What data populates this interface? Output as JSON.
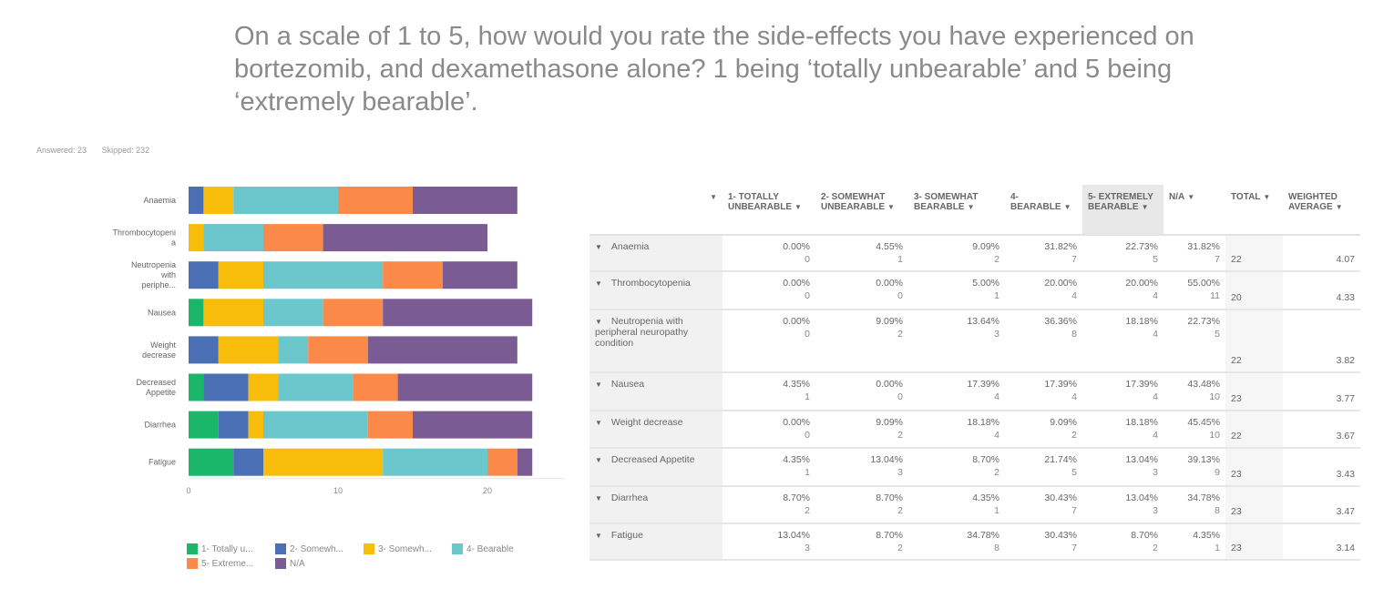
{
  "title": "On a scale of 1 to 5, how would you rate the side-effects you have experienced on bortezomib, and dexamethasone alone? 1 being ‘totally unbearable’ and 5 being ‘extremely bearable’.",
  "answered": "Answered: 23",
  "skipped": "Skipped: 232",
  "chart_data": {
    "type": "bar",
    "orientation": "horizontal",
    "stacked": true,
    "categories": [
      "Anaemia",
      "Thrombocytopenia",
      "Neutropenia with periphe...",
      "Nausea",
      "Weight decrease",
      "Decreased Appetite",
      "Diarrhea",
      "Fatigue"
    ],
    "category_labels": [
      [
        "Anaemia"
      ],
      [
        "Thrombocytopeni",
        "a"
      ],
      [
        "Neutropenia",
        "with",
        "periphe..."
      ],
      [
        "Nausea"
      ],
      [
        "Weight",
        "decrease"
      ],
      [
        "Decreased",
        "Appetite"
      ],
      [
        "Diarrhea"
      ],
      [
        "Fatigue"
      ]
    ],
    "series": [
      {
        "name": "1- Totally u...",
        "color": "#1ab76b",
        "values": [
          0,
          0,
          0,
          1,
          0,
          1,
          2,
          3
        ]
      },
      {
        "name": "2- Somewh...",
        "color": "#4a6fb5",
        "values": [
          1,
          0,
          2,
          0,
          2,
          3,
          2,
          2
        ]
      },
      {
        "name": "3- Somewh...",
        "color": "#f7bd0a",
        "values": [
          2,
          1,
          3,
          4,
          4,
          2,
          1,
          8
        ]
      },
      {
        "name": "4- Bearable",
        "color": "#6cc7cc",
        "values": [
          7,
          4,
          8,
          4,
          2,
          5,
          7,
          7
        ]
      },
      {
        "name": "5- Extreme...",
        "color": "#fb8a4a",
        "values": [
          5,
          4,
          4,
          4,
          4,
          3,
          3,
          2
        ]
      },
      {
        "name": "N/A",
        "color": "#7b5b93",
        "values": [
          7,
          11,
          5,
          10,
          10,
          9,
          8,
          1
        ]
      }
    ],
    "x_ticks": [
      0,
      10,
      20
    ],
    "xlim": [
      0,
      25
    ],
    "legend_position": "bottom",
    "grid": false
  },
  "table": {
    "headers": [
      {
        "label": "",
        "arrow": "▼"
      },
      {
        "label": "1- TOTALLY UNBEARABLE",
        "arrow": "▼"
      },
      {
        "label": "2- SOMEWHAT UNBEARABLE",
        "arrow": "▼"
      },
      {
        "label": "3- SOMEWHAT BEARABLE",
        "arrow": "▼"
      },
      {
        "label": "4- BEARABLE",
        "arrow": "▼"
      },
      {
        "label": "5- EXTREMELY BEARABLE",
        "arrow": "▼"
      },
      {
        "label": "N/A",
        "arrow": "▼"
      },
      {
        "label": "TOTAL",
        "arrow": "▼"
      },
      {
        "label": "WEIGHTED AVERAGE",
        "arrow": "▼"
      }
    ],
    "rows": [
      {
        "label": "Anaemia",
        "cells": [
          [
            "0.00%",
            "0"
          ],
          [
            "4.55%",
            "1"
          ],
          [
            "9.09%",
            "2"
          ],
          [
            "31.82%",
            "7"
          ],
          [
            "22.73%",
            "5"
          ],
          [
            "31.82%",
            "7"
          ]
        ],
        "total": "22",
        "avg": "4.07"
      },
      {
        "label": "Thrombocytopenia",
        "cells": [
          [
            "0.00%",
            "0"
          ],
          [
            "0.00%",
            "0"
          ],
          [
            "5.00%",
            "1"
          ],
          [
            "20.00%",
            "4"
          ],
          [
            "20.00%",
            "4"
          ],
          [
            "55.00%",
            "11"
          ]
        ],
        "total": "20",
        "avg": "4.33"
      },
      {
        "label": "Neutropenia with peripheral neuropathy condition",
        "cells": [
          [
            "0.00%",
            "0"
          ],
          [
            "9.09%",
            "2"
          ],
          [
            "13.64%",
            "3"
          ],
          [
            "36.36%",
            "8"
          ],
          [
            "18.18%",
            "4"
          ],
          [
            "22.73%",
            "5"
          ]
        ],
        "total": "22",
        "avg": "3.82"
      },
      {
        "label": "Nausea",
        "cells": [
          [
            "4.35%",
            "1"
          ],
          [
            "0.00%",
            "0"
          ],
          [
            "17.39%",
            "4"
          ],
          [
            "17.39%",
            "4"
          ],
          [
            "17.39%",
            "4"
          ],
          [
            "43.48%",
            "10"
          ]
        ],
        "total": "23",
        "avg": "3.77"
      },
      {
        "label": "Weight decrease",
        "cells": [
          [
            "0.00%",
            "0"
          ],
          [
            "9.09%",
            "2"
          ],
          [
            "18.18%",
            "4"
          ],
          [
            "9.09%",
            "2"
          ],
          [
            "18.18%",
            "4"
          ],
          [
            "45.45%",
            "10"
          ]
        ],
        "total": "22",
        "avg": "3.67"
      },
      {
        "label": "Decreased Appetite",
        "cells": [
          [
            "4.35%",
            "1"
          ],
          [
            "13.04%",
            "3"
          ],
          [
            "8.70%",
            "2"
          ],
          [
            "21.74%",
            "5"
          ],
          [
            "13.04%",
            "3"
          ],
          [
            "39.13%",
            "9"
          ]
        ],
        "total": "23",
        "avg": "3.43"
      },
      {
        "label": "Diarrhea",
        "cells": [
          [
            "8.70%",
            "2"
          ],
          [
            "8.70%",
            "2"
          ],
          [
            "4.35%",
            "1"
          ],
          [
            "30.43%",
            "7"
          ],
          [
            "13.04%",
            "3"
          ],
          [
            "34.78%",
            "8"
          ]
        ],
        "total": "23",
        "avg": "3.47"
      },
      {
        "label": "Fatigue",
        "cells": [
          [
            "13.04%",
            "3"
          ],
          [
            "8.70%",
            "2"
          ],
          [
            "34.78%",
            "8"
          ],
          [
            "30.43%",
            "7"
          ],
          [
            "8.70%",
            "2"
          ],
          [
            "4.35%",
            "1"
          ]
        ],
        "total": "23",
        "avg": "3.14"
      }
    ]
  }
}
